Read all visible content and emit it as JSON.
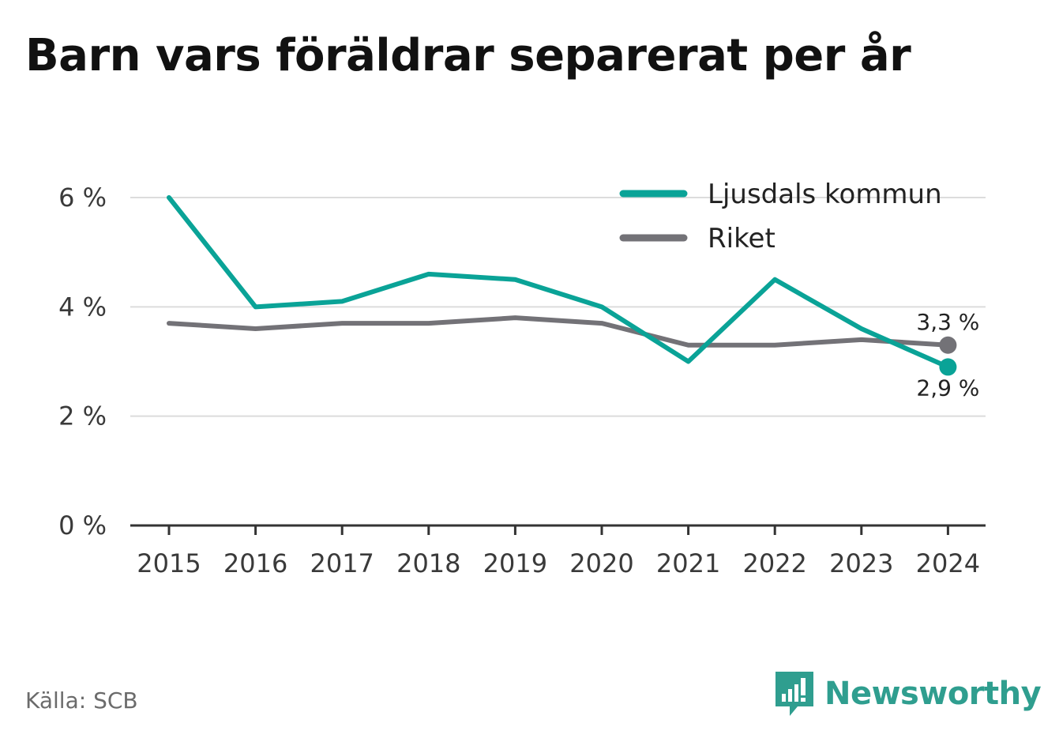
{
  "title": "Barn vars föräldrar separerat per år",
  "source": "Källa: SCB",
  "brand": {
    "name": "Newsworthy",
    "icon": "newsworthy-logo-icon",
    "color": "#2f9e8f"
  },
  "chart_data": {
    "type": "line",
    "x": [
      "2015",
      "2016",
      "2017",
      "2018",
      "2019",
      "2020",
      "2021",
      "2022",
      "2023",
      "2024"
    ],
    "series": [
      {
        "name": "Ljusdals kommun",
        "color": "#0aa397",
        "values": [
          6.0,
          4.0,
          4.1,
          4.6,
          4.5,
          4.0,
          3.0,
          4.5,
          3.6,
          2.9
        ],
        "end_label": "2,9 %"
      },
      {
        "name": "Riket",
        "color": "#737277",
        "values": [
          3.7,
          3.6,
          3.7,
          3.7,
          3.8,
          3.7,
          3.3,
          3.3,
          3.4,
          3.3
        ],
        "end_label": "3,3 %"
      }
    ],
    "y_ticks": [
      {
        "value": 0,
        "label": "0 %"
      },
      {
        "value": 2,
        "label": "2 %"
      },
      {
        "value": 4,
        "label": "4 %"
      },
      {
        "value": 6,
        "label": "6 %"
      }
    ],
    "ylim": [
      0,
      6
    ],
    "grid": true,
    "legend_position": "top-right"
  }
}
